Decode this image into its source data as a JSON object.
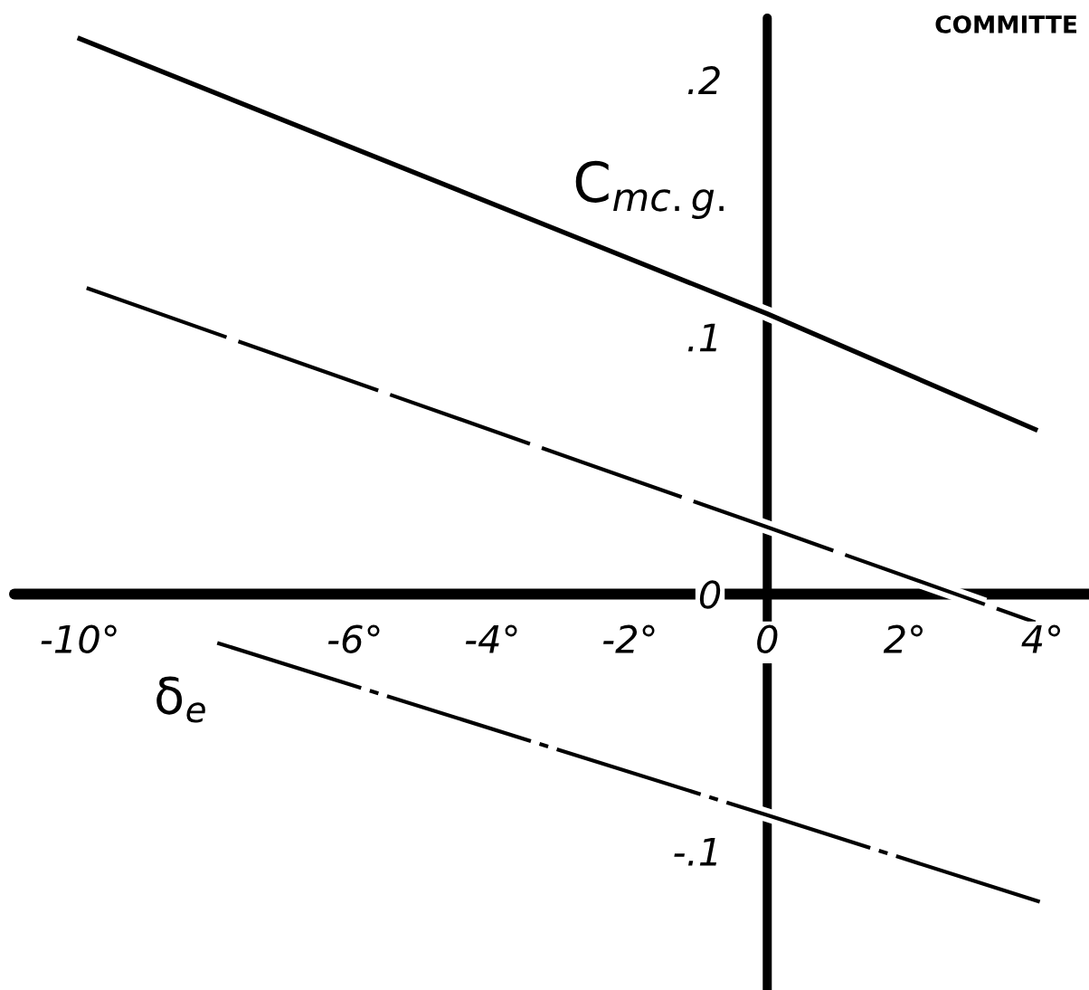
{
  "chart_data": {
    "type": "line",
    "xlabel": "δ$_{e}$",
    "ylabel": "C$_{mc.g.}$",
    "annotations": [
      "COMMITTE"
    ],
    "series": [
      {
        "color": "#000000",
        "line_style": "solid",
        "x": [
          -10,
          0,
          3.9
        ],
        "values": [
          0.216,
          0.109,
          0.064
        ]
      },
      {
        "color": "#000000",
        "line_style": "dashed",
        "x": [
          -9.9,
          0,
          3.9
        ],
        "values": [
          0.119,
          0.026,
          -0.011
        ]
      },
      {
        "color": "#000000",
        "line_style": "dashdot",
        "x": [
          -8,
          0,
          4
        ],
        "values": [
          -0.019,
          -0.086,
          -0.12
        ]
      }
    ],
    "xlim": [
      -10.95,
      4.68
    ],
    "xticks": [
      {
        "value": -10,
        "label": "-10°"
      },
      {
        "value": -6,
        "label": "-6°"
      },
      {
        "value": -4,
        "label": "-4°"
      },
      {
        "value": -2,
        "label": "-2°"
      },
      0,
      {
        "value": 2,
        "label": "2°"
      },
      {
        "value": 4,
        "label": "4°"
      }
    ],
    "ylim": [
      -0.154,
      0.224
    ],
    "yticks": [
      {
        "value": 0.2,
        "label": ".2"
      },
      {
        "value": 0.1,
        "label": ".1"
      },
      0,
      {
        "value": -0.1,
        "label": "-.1"
      }
    ]
  }
}
